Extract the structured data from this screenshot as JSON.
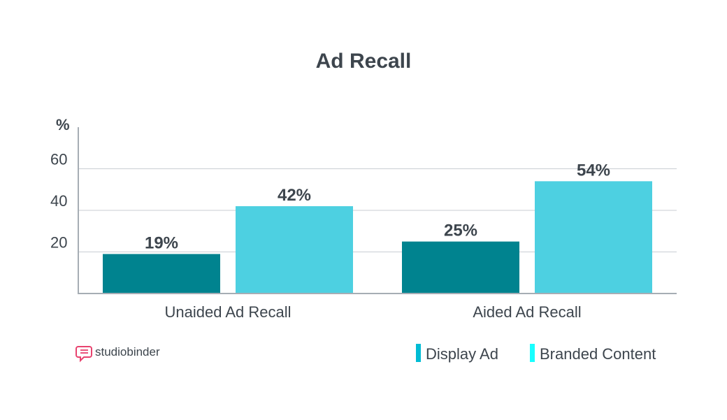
{
  "brand": {
    "name_part1": "studio",
    "name_part2": "binder",
    "color": "#e8436f"
  },
  "chart_data": {
    "type": "bar",
    "title": "Ad Recall",
    "ylabel": "%",
    "categories": [
      "Unaided Ad Recall",
      "Aided Ad Recall"
    ],
    "series": [
      {
        "name": "Display Ad",
        "values": [
          19,
          25
        ],
        "labels": [
          "19%",
          "25%"
        ],
        "color": "#00838f"
      },
      {
        "name": "Branded Content",
        "values": [
          42,
          54
        ],
        "labels": [
          "42%",
          "54%"
        ],
        "color": "#4dd0e1"
      }
    ],
    "yticks": [
      20,
      40,
      60
    ],
    "ylim": [
      0,
      80
    ],
    "grid": true,
    "legend_position": "bottom-right",
    "legend_colors": [
      "#00bcd4",
      "#18ffff"
    ]
  }
}
